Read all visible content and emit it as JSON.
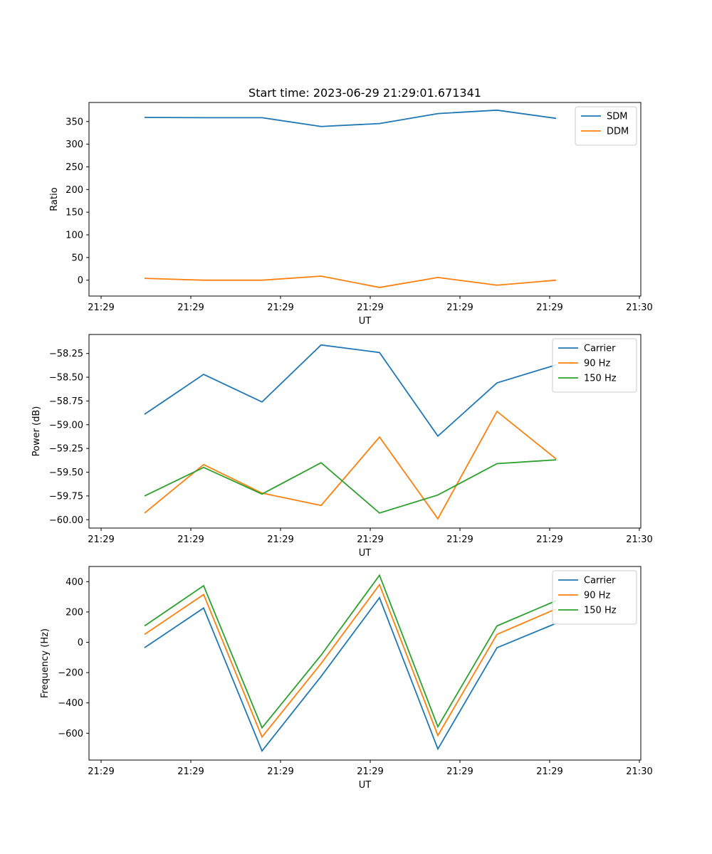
{
  "figure": {
    "title": "Start time: 2023-06-29 21:29:01.671341"
  },
  "chart_data": [
    {
      "type": "line",
      "title": "Start time: 2023-06-29 21:29:01.671341",
      "xlabel": "UT",
      "ylabel": "Ratio",
      "x_tick_labels": [
        "21:29",
        "21:29",
        "21:29",
        "21:29",
        "21:29",
        "21:29",
        "21:29",
        "21:30"
      ],
      "y_ticks": [
        0,
        50,
        100,
        150,
        200,
        250,
        300,
        350
      ],
      "y_tick_labels": [
        "0",
        "50",
        "100",
        "150",
        "200",
        "250",
        "300",
        "350"
      ],
      "ylim": [
        -35,
        392
      ],
      "grid": false,
      "legend_position": "upper right",
      "series": [
        {
          "name": "SDM",
          "color": "#1f77b4",
          "values": [
            359,
            358.5,
            358.5,
            339,
            345.5,
            367.5,
            375,
            357
          ]
        },
        {
          "name": "DDM",
          "color": "#ff7f0e",
          "values": [
            4,
            0,
            0,
            9,
            -16,
            6,
            -11,
            0
          ]
        }
      ]
    },
    {
      "type": "line",
      "xlabel": "UT",
      "ylabel": "Power (dB)",
      "x_tick_labels": [
        "21:29",
        "21:29",
        "21:29",
        "21:29",
        "21:29",
        "21:29",
        "21:29",
        "21:30"
      ],
      "y_ticks": [
        -60.0,
        -59.75,
        -59.5,
        -59.25,
        -59.0,
        -58.75,
        -58.5,
        -58.25
      ],
      "y_tick_labels": [
        "−60.00",
        "−59.75",
        "−59.50",
        "−59.25",
        "−59.00",
        "−58.75",
        "−58.50",
        "−58.25"
      ],
      "ylim": [
        -60.088,
        -58.05
      ],
      "grid": false,
      "legend_position": "upper right",
      "series": [
        {
          "name": "Carrier",
          "color": "#1f77b4",
          "values": [
            -58.89,
            -58.47,
            -58.76,
            -58.16,
            -58.24,
            -59.12,
            -58.56,
            -58.37
          ]
        },
        {
          "name": "90 Hz",
          "color": "#ff7f0e",
          "values": [
            -59.93,
            -59.42,
            -59.72,
            -59.85,
            -59.13,
            -59.99,
            -58.86,
            -59.36
          ]
        },
        {
          "name": "150 Hz",
          "color": "#2ca02c",
          "values": [
            -59.75,
            -59.45,
            -59.73,
            -59.4,
            -59.93,
            -59.74,
            -59.41,
            -59.37
          ]
        }
      ]
    },
    {
      "type": "line",
      "xlabel": "UT",
      "ylabel": "Frequency (Hz)",
      "x_tick_labels": [
        "21:29",
        "21:29",
        "21:29",
        "21:29",
        "21:29",
        "21:29",
        "21:29",
        "21:30"
      ],
      "y_ticks": [
        -600,
        -400,
        -200,
        0,
        200,
        400
      ],
      "y_tick_labels": [
        "−600",
        "−400",
        "−200",
        "0",
        "200",
        "400"
      ],
      "ylim": [
        -777,
        500
      ],
      "grid": false,
      "legend_position": "upper right",
      "series": [
        {
          "name": "Carrier",
          "color": "#1f77b4",
          "values": [
            -36,
            226,
            -717,
            -225,
            294,
            -704,
            -36,
            125
          ]
        },
        {
          "name": "90 Hz",
          "color": "#ff7f0e",
          "values": [
            52,
            315,
            -625,
            -140,
            380,
            -615,
            52,
            220
          ]
        },
        {
          "name": "150 Hz",
          "color": "#2ca02c",
          "values": [
            108,
            373,
            -564,
            -85,
            442,
            -557,
            108,
            274
          ]
        }
      ]
    }
  ]
}
